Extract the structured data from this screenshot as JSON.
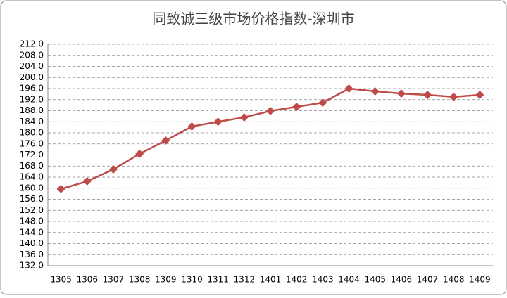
{
  "chart_data": {
    "type": "line",
    "title": "同致诚三级市场价格指数-深圳市",
    "categories": [
      "1305",
      "1306",
      "1307",
      "1308",
      "1309",
      "1310",
      "1311",
      "1312",
      "1401",
      "1402",
      "1403",
      "1404",
      "1405",
      "1406",
      "1407",
      "1408",
      "1409"
    ],
    "series": [
      {
        "name": "深圳市",
        "color": "#be4b48",
        "values": [
          159.7,
          162.5,
          166.8,
          172.4,
          177.2,
          182.3,
          184.0,
          185.6,
          187.9,
          189.4,
          190.9,
          196.0,
          195.0,
          194.2,
          193.7,
          193.0,
          193.7
        ]
      }
    ],
    "ylim": [
      132,
      212
    ],
    "yticks": [
      {
        "value": 132,
        "label": "132.0"
      },
      {
        "value": 136,
        "label": "136.0"
      },
      {
        "value": 140,
        "label": "140.0"
      },
      {
        "value": 144,
        "label": "144.0"
      },
      {
        "value": 148,
        "label": "148.0"
      },
      {
        "value": 152,
        "label": "152.0"
      },
      {
        "value": 156,
        "label": "156.0"
      },
      {
        "value": 160,
        "label": "160.0"
      },
      {
        "value": 164,
        "label": "164.0"
      },
      {
        "value": 168,
        "label": "168.0"
      },
      {
        "value": 172,
        "label": "172.0"
      },
      {
        "value": 176,
        "label": "176.0"
      },
      {
        "value": 180,
        "label": "180.0"
      },
      {
        "value": 184,
        "label": "184.0"
      },
      {
        "value": 188,
        "label": "188.0"
      },
      {
        "value": 192,
        "label": "192.0"
      },
      {
        "value": 196,
        "label": "196.0"
      },
      {
        "value": 200,
        "label": "200.0"
      },
      {
        "value": 204,
        "label": "204.0"
      },
      {
        "value": 208,
        "label": "208.0"
      },
      {
        "value": 212,
        "label": "212.0"
      }
    ],
    "grid": true
  }
}
